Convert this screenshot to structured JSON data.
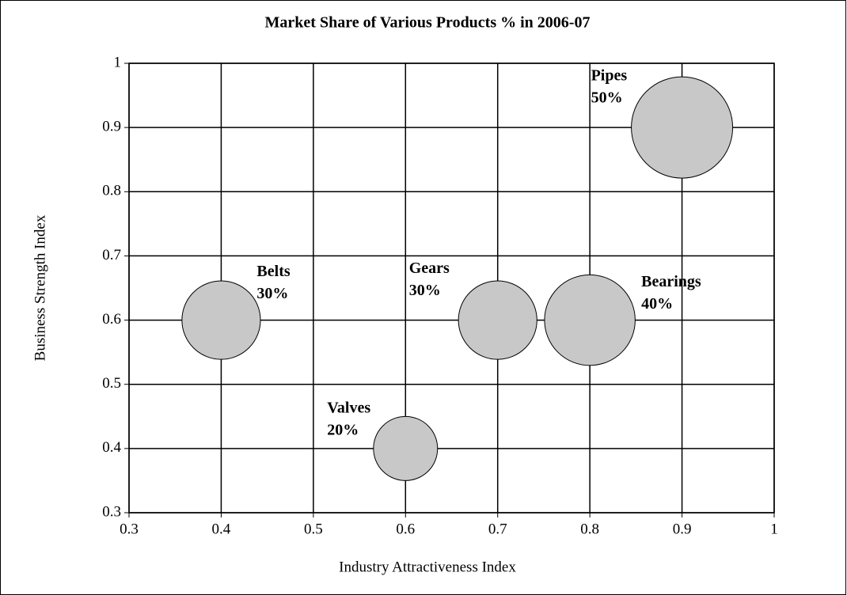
{
  "chart_data": {
    "type": "bubble",
    "title": "Market Share of Various Products % in 2006-07",
    "x_label": "Industry Attractiveness Index",
    "y_label": "Business Strength Index",
    "labels": [
      "Belts",
      "Valves",
      "Gears",
      "Bearings",
      "Pipes"
    ],
    "x": [
      0.4,
      0.6,
      0.7,
      0.8,
      0.9
    ],
    "y": [
      0.6,
      0.4,
      0.6,
      0.6,
      0.9
    ],
    "sizes": [
      30,
      20,
      30,
      40,
      50
    ],
    "value_labels": [
      "30%",
      "20%",
      "30%",
      "40%",
      "50%"
    ],
    "color": "#c8c8c8",
    "xlim": [
      0.3,
      1
    ],
    "xticks": [
      0.3,
      0.4,
      0.5,
      0.6,
      0.7,
      0.8,
      0.9,
      1
    ],
    "ylim": [
      0.3,
      1
    ],
    "yticks": [
      0.3,
      0.4,
      0.5,
      0.6,
      0.7,
      0.8,
      0.9,
      1
    ],
    "grid": true
  }
}
